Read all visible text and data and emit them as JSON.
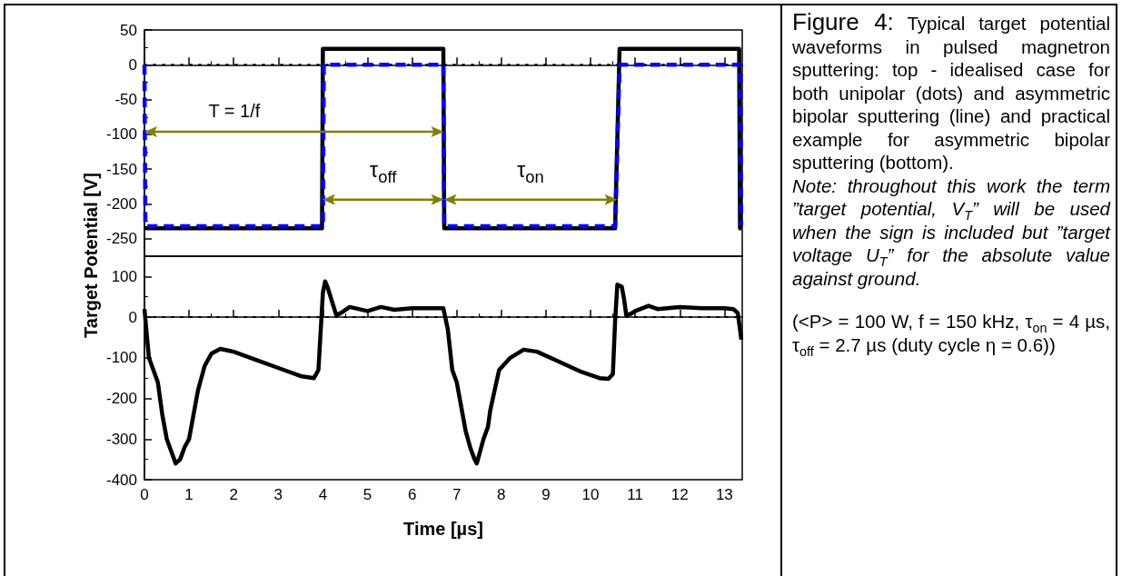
{
  "chart_data": [
    {
      "type": "line",
      "ylabel": "Target Potential [V]",
      "xlim": [
        0,
        13.4
      ],
      "xticks": [
        0,
        1,
        2,
        3,
        4,
        5,
        6,
        7,
        8,
        9,
        10,
        11,
        12,
        13
      ],
      "ylim": [
        -275,
        50
      ],
      "yticks": [
        -250,
        -200,
        -150,
        -100,
        -50,
        0,
        50
      ],
      "tick_labels": "y",
      "marker": "none",
      "series": [
        {
          "color": "#000000",
          "line_style": "solid",
          "x": [
            0,
            3.98,
            4.0,
            6.7,
            6.72,
            10.55,
            10.65,
            13.33,
            13.35,
            13.38
          ],
          "values": [
            -235,
            -235,
            23,
            23,
            -235,
            -235,
            23,
            23,
            -235,
            -235
          ]
        },
        {
          "color": "#0000ff",
          "line_style": "dashed",
          "x": [
            0,
            0.02,
            4.0,
            4.02,
            6.7,
            6.72,
            10.55,
            10.65,
            13.35,
            13.37
          ],
          "values": [
            0,
            -232,
            -232,
            0,
            0,
            -232,
            -232,
            0,
            0,
            -232
          ]
        }
      ],
      "ref_lines": [
        {
          "axis": "y",
          "value": 0,
          "color": "#000000",
          "line_style": "dotted"
        }
      ],
      "annotations": [
        "T = 1/f",
        "τ$_{off}$",
        "τ$_{on}$"
      ]
    },
    {
      "type": "line",
      "xlabel": "Time [µs]",
      "xlim": [
        0,
        13.4
      ],
      "xticks": [
        0,
        1,
        2,
        3,
        4,
        5,
        6,
        7,
        8,
        9,
        10,
        11,
        12,
        13
      ],
      "ylim": [
        -400,
        150
      ],
      "yticks": [
        -400,
        -300,
        -200,
        -100,
        0,
        100
      ],
      "marker": "none",
      "series": [
        {
          "color": "#000000",
          "line_style": "solid",
          "x": [
            0,
            0.1,
            0.2,
            0.3,
            0.4,
            0.5,
            0.6,
            0.7,
            0.8,
            0.9,
            1.0,
            1.1,
            1.2,
            1.35,
            1.5,
            1.7,
            2.0,
            2.5,
            3.0,
            3.5,
            3.8,
            3.9,
            4.0,
            4.05,
            4.1,
            4.3,
            4.4,
            4.6,
            4.8,
            5.0,
            5.3,
            5.6,
            6.0,
            6.5,
            6.7,
            6.8,
            6.9,
            7.0,
            7.1,
            7.2,
            7.3,
            7.4,
            7.45,
            7.5,
            7.6,
            7.7,
            7.75,
            7.85,
            7.95,
            8.2,
            8.5,
            8.8,
            9.3,
            9.8,
            10.2,
            10.4,
            10.5,
            10.55,
            10.6,
            10.7,
            10.75,
            10.8,
            10.9,
            11.0,
            11.3,
            11.5,
            12.0,
            12.5,
            13.0,
            13.2,
            13.3,
            13.38
          ],
          "values": [
            20,
            -100,
            -130,
            -160,
            -240,
            -300,
            -330,
            -360,
            -350,
            -320,
            -300,
            -240,
            -180,
            -120,
            -90,
            -78,
            -85,
            -105,
            -125,
            -145,
            -150,
            -130,
            60,
            88,
            75,
            5,
            10,
            25,
            20,
            15,
            25,
            18,
            22,
            22,
            22,
            -30,
            -130,
            -160,
            -220,
            -280,
            -320,
            -350,
            -360,
            -340,
            -300,
            -270,
            -230,
            -180,
            -130,
            -100,
            -80,
            -85,
            -110,
            -135,
            -150,
            -152,
            -140,
            -10,
            80,
            75,
            45,
            5,
            8,
            15,
            28,
            20,
            25,
            22,
            22,
            20,
            10,
            -55
          ]
        }
      ],
      "ref_lines": [
        {
          "axis": "y",
          "value": 0,
          "color": "#000000",
          "line_style": "dotted"
        }
      ]
    },
    {
      "type": "other",
      "title": "Figure 4:",
      "annotations": [
        "Typical target potential waveforms in pulsed magnetron sputtering: top - idealised case for both unipolar (dots) and asymmetric bipolar sputtering (line) and practical example for asymmetric bipolar sputtering (bottom).",
        "Note: throughout this work the term ”target potential, V$_{T}$” will be used when the sign is included but ”target voltage U$_{T}$” for the absolute value against ground.",
        "(<P> = 100 W, f = 150 kHz, τ$_{on}$ = 4 µs, τ$_{off}$ = 2.7 µs (duty cycle η = 0.6))"
      ]
    }
  ]
}
